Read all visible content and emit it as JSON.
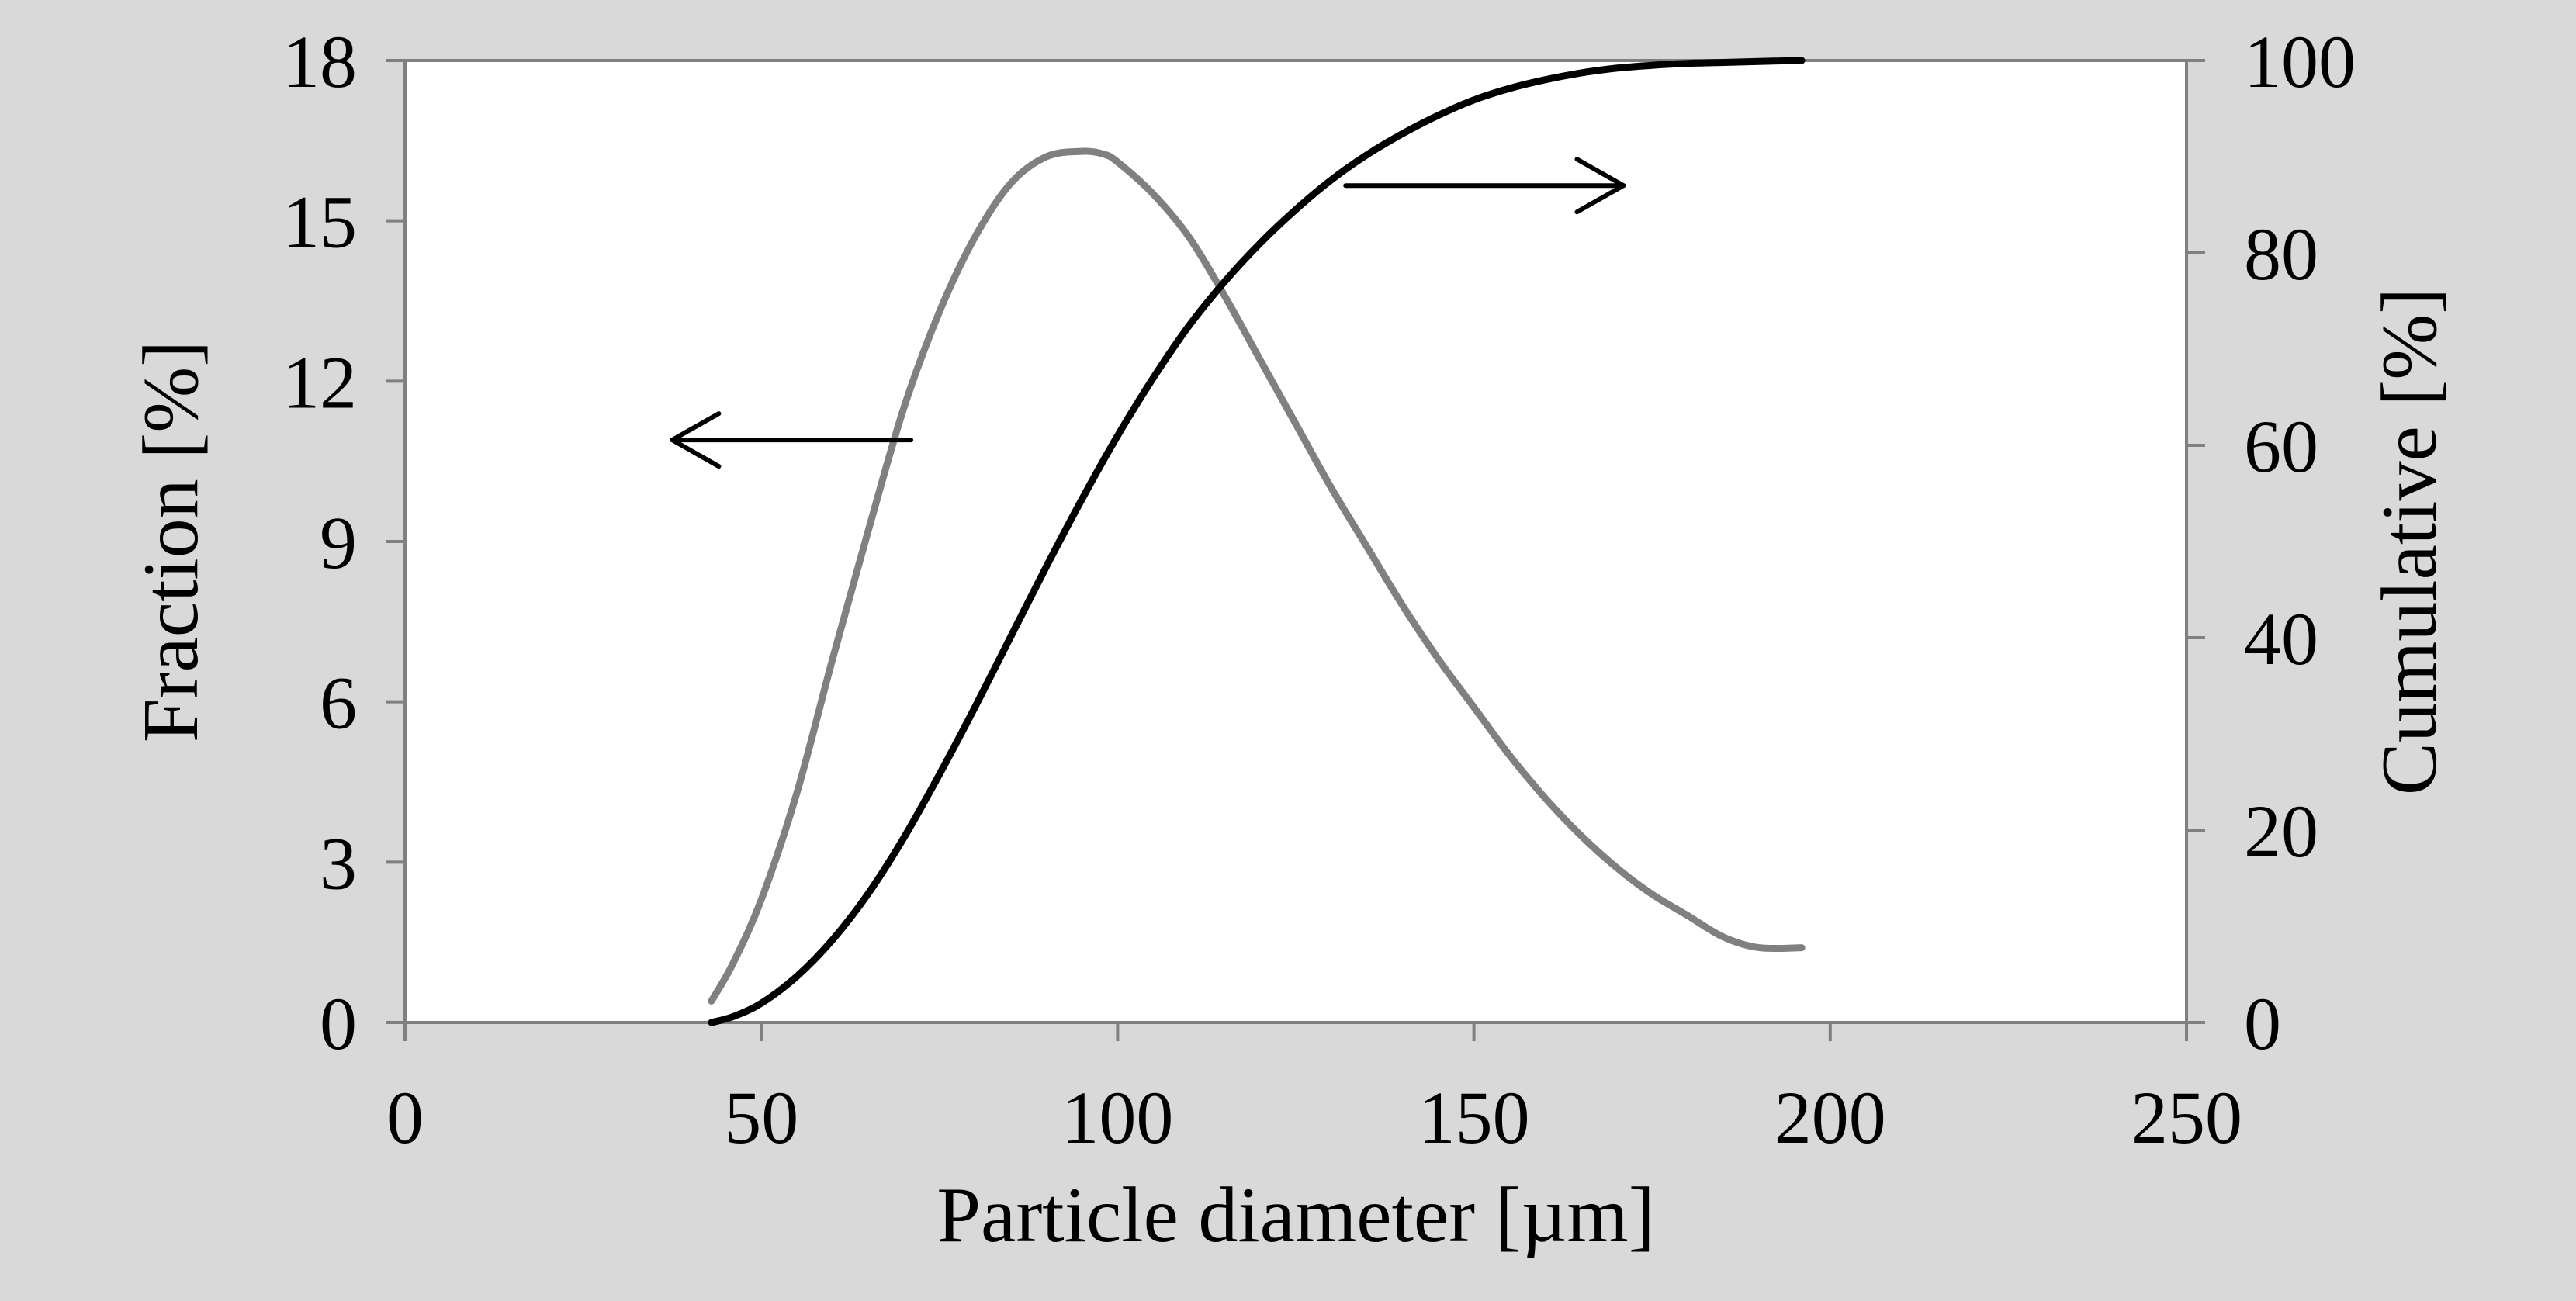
{
  "chart_data": {
    "type": "line",
    "title": "",
    "xlabel": "Particle diameter [µm]",
    "ylabel_left": "Fraction [%]",
    "ylabel_right": "Cumulative [%]",
    "xlim": [
      0,
      250
    ],
    "ylim_left": [
      0,
      18
    ],
    "ylim_right": [
      0,
      100
    ],
    "x_ticks": [
      0,
      50,
      100,
      150,
      200,
      250
    ],
    "y_ticks_left": [
      0,
      3,
      6,
      9,
      12,
      15,
      18
    ],
    "y_ticks_right": [
      0,
      20,
      40,
      60,
      80,
      100
    ],
    "grid": false,
    "legend": "none",
    "colors": {
      "page_background": "#d9d9d9",
      "plot_background": "#ffffff",
      "axis": "#808080",
      "fraction_series": "#808080",
      "cumulative_series": "#000000",
      "arrow": "#000000"
    },
    "series": [
      {
        "axis": "left",
        "x": [
          43,
          46,
          50,
          55,
          60,
          65,
          70,
          75,
          80,
          85,
          90,
          95,
          98,
          100,
          105,
          110,
          115,
          120,
          125,
          130,
          135,
          140,
          145,
          150,
          155,
          160,
          165,
          170,
          175,
          180,
          185,
          190,
          196
        ],
        "values": [
          0.4,
          1.1,
          2.3,
          4.3,
          6.8,
          9.2,
          11.5,
          13.3,
          14.7,
          15.7,
          16.2,
          16.3,
          16.25,
          16.1,
          15.5,
          14.7,
          13.6,
          12.4,
          11.2,
          10.0,
          8.9,
          7.8,
          6.8,
          5.9,
          5.0,
          4.2,
          3.5,
          2.9,
          2.4,
          2.0,
          1.6,
          1.4,
          1.4
        ]
      },
      {
        "axis": "right",
        "x": [
          43,
          46,
          50,
          55,
          60,
          65,
          70,
          75,
          80,
          85,
          90,
          95,
          100,
          105,
          110,
          115,
          120,
          125,
          130,
          135,
          140,
          145,
          150,
          155,
          160,
          165,
          170,
          175,
          180,
          185,
          190,
          196
        ],
        "values": [
          0,
          0.6,
          2.0,
          4.8,
          8.6,
          13.4,
          19.2,
          25.8,
          32.8,
          40.1,
          47.4,
          54.4,
          61.0,
          67.0,
          72.4,
          77.0,
          81.0,
          84.5,
          87.6,
          90.2,
          92.4,
          94.3,
          95.9,
          97.1,
          98.0,
          98.7,
          99.2,
          99.5,
          99.7,
          99.8,
          99.9,
          100
        ]
      }
    ],
    "annotations": [
      {
        "type": "arrow",
        "direction": "left",
        "meaning": "Fraction [%] curve read on left axis"
      },
      {
        "type": "arrow",
        "direction": "right",
        "meaning": "Cumulative [%] curve read on right axis"
      }
    ]
  }
}
